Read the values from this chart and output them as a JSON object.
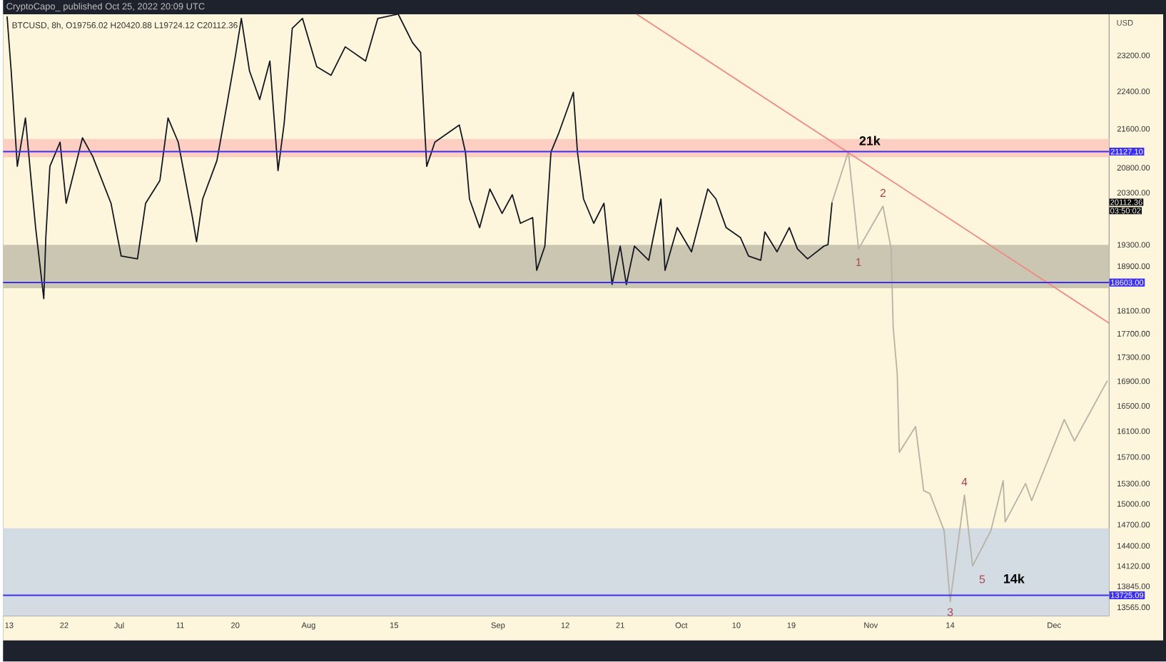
{
  "chart_data": {
    "type": "line",
    "title": "CryptoCapo_ published Oct 25, 2022 20:09 UTC",
    "subtitle": "BTCUSD, 8h, O19756.02 H20420.88 L19724.12 C20112.36",
    "ylabel": "USD",
    "log": "y",
    "xlim": [
      "2022-06-12",
      "2022-12-10"
    ],
    "ylim": [
      13450,
      24150
    ],
    "xticks": [
      {
        "value": "2022-06-13",
        "label": "13"
      },
      {
        "value": "2022-06-22",
        "label": "22"
      },
      {
        "value": "2022-07-01",
        "label": "Jul"
      },
      {
        "value": "2022-07-11",
        "label": "11"
      },
      {
        "value": "2022-07-20",
        "label": "20"
      },
      {
        "value": "2022-08-01",
        "label": "Aug"
      },
      {
        "value": "2022-08-15",
        "label": "15"
      },
      {
        "value": "2022-09-01",
        "label": "Sep"
      },
      {
        "value": "2022-09-12",
        "label": "12"
      },
      {
        "value": "2022-09-21",
        "label": "21"
      },
      {
        "value": "2022-10-01",
        "label": "Oct"
      },
      {
        "value": "2022-10-10",
        "label": "10"
      },
      {
        "value": "2022-10-19",
        "label": "19"
      },
      {
        "value": "2022-11-01",
        "label": "Nov"
      },
      {
        "value": "2022-11-14",
        "label": "14"
      },
      {
        "value": "2022-12-01",
        "label": "Dec"
      }
    ],
    "yticks": [
      {
        "value": 23200,
        "label": "23200.00"
      },
      {
        "value": 22400,
        "label": "22400.00"
      },
      {
        "value": 21600,
        "label": "21600.00"
      },
      {
        "value": 20800,
        "label": "20800.00"
      },
      {
        "value": 20300,
        "label": "20300.00"
      },
      {
        "value": 19300,
        "label": "19300.00"
      },
      {
        "value": 18900,
        "label": "18900.00"
      },
      {
        "value": 18100,
        "label": "18100.00"
      },
      {
        "value": 17700,
        "label": "17700.00"
      },
      {
        "value": 17300,
        "label": "17300.00"
      },
      {
        "value": 16900,
        "label": "16900.00"
      },
      {
        "value": 16500,
        "label": "16500.00"
      },
      {
        "value": 16100,
        "label": "16100.00"
      },
      {
        "value": 15700,
        "label": "15700.00"
      },
      {
        "value": 15300,
        "label": "15300.00"
      },
      {
        "value": 15000,
        "label": "15000.00"
      },
      {
        "value": 14700,
        "label": "14700.00"
      },
      {
        "value": 14400,
        "label": "14400.00"
      },
      {
        "value": 14120,
        "label": "14120.00"
      },
      {
        "value": 13845,
        "label": "13845.00"
      },
      {
        "value": 13565,
        "label": "13565.00"
      }
    ],
    "bands": [
      {
        "axis": "y",
        "from": 21010,
        "to": 21390,
        "color": "#fdcfc2"
      },
      {
        "axis": "y",
        "from": 18500,
        "to": 19300,
        "color": "#cbc6b2"
      },
      {
        "axis": "y",
        "from": 13450,
        "to": 14650,
        "color": "#d3dbe3"
      }
    ],
    "ref_lines": [
      {
        "axis": "y",
        "value": 21127.1,
        "label": "21127.10",
        "color": "#3b2ff0"
      },
      {
        "axis": "y",
        "value": 18603,
        "label": "18603.00",
        "color": "#3b2ff0"
      },
      {
        "axis": "y",
        "value": 13725.09,
        "label": "13725.09",
        "color": "#3b2ff0"
      }
    ],
    "series": [
      {
        "color": "#131722",
        "x": [
          "2022-06-12T16:00",
          "2022-06-13T08:00",
          "2022-06-14T08:00",
          "2022-06-15T16:00",
          "2022-06-16T16:00",
          "2022-06-17T08:00",
          "2022-06-18T16:00",
          "2022-06-19T00:00",
          "2022-06-19T16:00",
          "2022-06-21T08:00",
          "2022-06-22T08:00",
          "2022-06-25T00:00",
          "2022-06-26T16:00",
          "2022-06-29T16:00",
          "2022-07-01T08:00",
          "2022-07-04T00:00",
          "2022-07-05T08:00",
          "2022-07-07T16:00",
          "2022-07-09T00:00",
          "2022-07-10T16:00",
          "2022-07-13T00:00",
          "2022-07-13T16:00",
          "2022-07-14T16:00",
          "2022-07-17T00:00",
          "2022-07-18T16:00",
          "2022-07-20T00:00",
          "2022-07-21T00:00",
          "2022-07-22T08:00",
          "2022-07-24T00:00",
          "2022-07-25T16:00",
          "2022-07-27T00:00",
          "2022-07-28T00:00",
          "2022-07-29T08:00",
          "2022-07-31T00:00",
          "2022-08-02T08:00",
          "2022-08-04T16:00",
          "2022-08-07T00:00",
          "2022-08-10T08:00",
          "2022-08-12T08:00",
          "2022-08-15T16:00",
          "2022-08-18T00:00",
          "2022-08-19T08:00",
          "2022-08-20T08:00",
          "2022-08-21T16:00",
          "2022-08-25T16:00",
          "2022-08-26T16:00",
          "2022-08-27T08:00",
          "2022-08-29T00:00",
          "2022-08-30T16:00",
          "2022-09-01T16:00",
          "2022-09-03T08:00",
          "2022-09-04T16:00",
          "2022-09-06T16:00",
          "2022-09-07T08:00",
          "2022-09-08T16:00",
          "2022-09-09T16:00",
          "2022-09-11T00:00",
          "2022-09-13T08:00",
          "2022-09-14T00:00",
          "2022-09-15T00:00",
          "2022-09-16T16:00",
          "2022-09-18T08:00",
          "2022-09-19T16:00",
          "2022-09-21T00:00",
          "2022-09-22T00:00",
          "2022-09-23T08:00",
          "2022-09-25T16:00",
          "2022-09-27T16:00",
          "2022-09-28T08:00",
          "2022-09-30T08:00",
          "2022-10-02T16:00",
          "2022-10-05T08:00",
          "2022-10-06T16:00",
          "2022-10-08T08:00",
          "2022-10-10T16:00",
          "2022-10-12T00:00",
          "2022-10-14T00:00",
          "2022-10-14T16:00",
          "2022-10-16T16:00",
          "2022-10-18T16:00",
          "2022-10-20T00:00",
          "2022-10-21T16:00",
          "2022-10-24T08:00",
          "2022-10-25T00:00",
          "2022-10-25T16:00"
        ],
        "values": [
          24083,
          22850,
          20828,
          21830,
          20456,
          19625,
          18314,
          19436,
          20828,
          21323,
          20092,
          21412,
          21030,
          20092,
          19089,
          19037,
          20092,
          20541,
          21830,
          21323,
          19816,
          19355,
          20175,
          20943,
          22134,
          23168,
          24049,
          22850,
          22226,
          23072,
          20741,
          21710,
          23818,
          24049,
          22945,
          22755,
          23393,
          23072,
          24049,
          24150,
          23491,
          23264,
          20828,
          21323,
          21680,
          21118,
          20175,
          19625,
          20372,
          19898,
          20259,
          19706,
          19816,
          18827,
          19275,
          21118,
          21530,
          22381,
          21118,
          20175,
          19706,
          20092,
          18569,
          19275,
          18569,
          19275,
          19011,
          20175,
          18827,
          19625,
          19169,
          20372,
          20175,
          19625,
          19436,
          19089,
          19011,
          19544,
          19169,
          19625,
          19222,
          19037,
          19275,
          19302,
          20112.36
        ]
      },
      {
        "color": "#b7b2a4",
        "x": [
          "2022-10-25T16:00",
          "2022-10-28T08:00",
          "2022-10-30T00:00",
          "2022-11-03T00:00",
          "2022-11-04T08:00",
          "2022-11-04T16:00",
          "2022-11-05T08:00",
          "2022-11-05T16:00",
          "2022-11-08T08:00",
          "2022-11-09T16:00",
          "2022-11-10T16:00",
          "2022-11-13T00:00",
          "2022-11-14T00:00",
          "2022-11-16T08:00",
          "2022-11-17T16:00",
          "2022-11-20T16:00",
          "2022-11-22T16:00",
          "2022-11-23T00:00",
          "2022-11-26T08:00",
          "2022-11-27T08:00",
          "2022-12-02T16:00",
          "2022-12-04T08:00",
          "2022-12-09T16:00"
        ],
        "values": [
          20112.36,
          21127.1,
          19222,
          20036,
          19222,
          17814,
          17019,
          15772,
          16170,
          15194,
          15152,
          14617,
          13640,
          15131,
          14120,
          14617,
          15342,
          14739,
          15299,
          15048,
          16282,
          15948,
          16900
        ]
      },
      {
        "color": "#ef8a84",
        "x": [
          "2022-09-23T16:00",
          "2022-12-10"
        ],
        "values": [
          24150,
          17885
        ]
      }
    ],
    "annotations": [
      {
        "text": "21k",
        "x": "2022-10-28T08:00",
        "y": 21127.1
      },
      {
        "text": "1",
        "x": "2022-10-30T00:00",
        "y": 19222
      },
      {
        "text": "2",
        "x": "2022-11-03T00:00",
        "y": 20036
      },
      {
        "text": "3",
        "x": "2022-11-14T00:00",
        "y": 13640
      },
      {
        "text": "4",
        "x": "2022-11-16T08:00",
        "y": 15131
      },
      {
        "text": "5",
        "x": "2022-11-17T16:00",
        "y": 14120
      },
      {
        "text": "14k",
        "x": "2022-11-17T16:00",
        "y": 14120
      },
      "20112.36",
      "03:50:02"
    ]
  }
}
